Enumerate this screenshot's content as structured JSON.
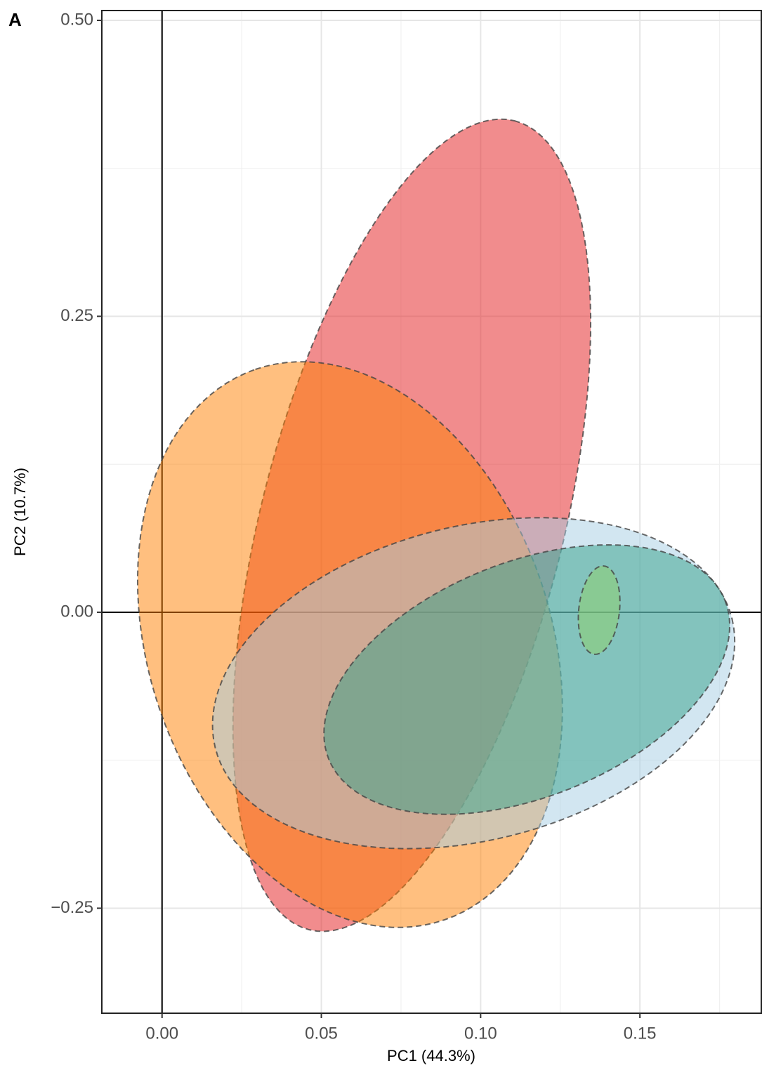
{
  "chart_data": {
    "type": "ellipse",
    "panel_label": "A",
    "x_label": "PC1 (44.3%)",
    "y_label": "PC2 (10.7%)",
    "xlim": [
      -0.0189,
      0.1881
    ],
    "ylim": [
      -0.3387,
      0.5083
    ],
    "xticks": [
      {
        "value": 0,
        "label": "0.00"
      },
      {
        "value": 0.05,
        "label": "0.05"
      },
      {
        "value": 0.1,
        "label": "0.10"
      },
      {
        "value": 0.15,
        "label": "0.15"
      }
    ],
    "yticks": [
      {
        "value": -0.25,
        "label": "−0.25"
      },
      {
        "value": 0,
        "label": "0.00"
      },
      {
        "value": 0.25,
        "label": "0.25"
      },
      {
        "value": 0.5,
        "label": "0.50"
      }
    ],
    "minor_xticks": [
      0.025,
      0.075,
      0.125,
      0.175
    ],
    "minor_yticks": [
      -0.125,
      0.125,
      0.375
    ],
    "grid": true,
    "hlines": [
      0
    ],
    "vlines": [
      0
    ],
    "ellipses": [
      {
        "color": "#e41a1c",
        "center": [
          0.0784,
          0.0735
        ],
        "axis1": [
          0.1106,
          0.4152
        ],
        "axis2": [
          0.1244,
          0.0427
        ]
      },
      {
        "color": "#ff7f00",
        "center": [
          0.059,
          -0.0273
        ],
        "axis1": [
          0.0293,
          0.2052
        ],
        "axis2": [
          0.1187,
          0.0279
        ]
      },
      {
        "color": "#a6cee3",
        "center": [
          0.0978,
          -0.0599
        ],
        "axis1": [
          0.1789,
          -0.0053
        ],
        "axis2": [
          0.1097,
          -0.1886
        ]
      },
      {
        "color": "#33a089",
        "center": [
          0.1145,
          -0.0569
        ],
        "axis1": [
          0.1767,
          0.0101
        ],
        "axis2": [
          0.1282,
          -0.1489
        ]
      },
      {
        "color": "#8fd16a",
        "center": [
          0.1372,
          0.0018
        ],
        "axis1": [
          0.1385,
          0.0391
        ],
        "axis2": [
          0.1436,
          0.0012
        ]
      }
    ]
  }
}
